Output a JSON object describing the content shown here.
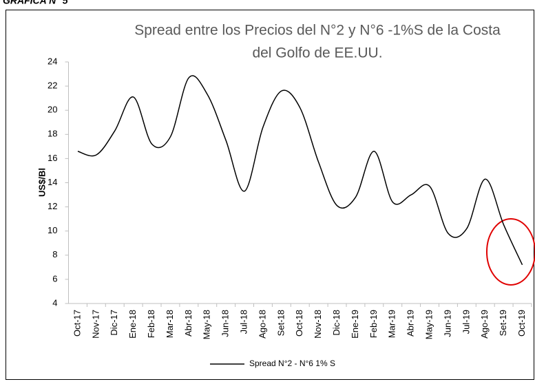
{
  "header": {
    "label": "GRÁFICA N° 5"
  },
  "chart_data": {
    "type": "line",
    "title": "Spread entre los Precios del N°2 y N°6 -1%S de la Costa",
    "title_line2": "del Golfo de EE.UU.",
    "y_label": "US$/Bl",
    "categories": [
      "Oct-17",
      "Nov-17",
      "Dic-17",
      "Ene-18",
      "Feb-18",
      "Mar-18",
      "Abr-18",
      "May-18",
      "Jun-18",
      "Jul-18",
      "Ago-18",
      "Set-18",
      "Oct-18",
      "Nov-18",
      "Dic-18",
      "Ene-19",
      "Feb-19",
      "Mar-19",
      "Abr-19",
      "May-19",
      "Jun-19",
      "Jul-19",
      "Ago-19",
      "Set-19",
      "Oct-19"
    ],
    "series": [
      {
        "name": "Spread N°2 - N°6 1% S",
        "color": "#000000",
        "values": [
          16.6,
          16.3,
          18.3,
          21.1,
          17.2,
          17.8,
          22.7,
          21.3,
          17.5,
          13.3,
          18.6,
          21.6,
          20.2,
          15.7,
          12.1,
          12.8,
          16.6,
          12.4,
          13.0,
          13.7,
          9.8,
          10.2,
          14.3,
          10.5,
          7.2
        ]
      }
    ],
    "ylim": [
      4,
      24
    ],
    "yticks": [
      4,
      6,
      8,
      10,
      12,
      14,
      16,
      18,
      20,
      22,
      24
    ],
    "grid": false
  }
}
